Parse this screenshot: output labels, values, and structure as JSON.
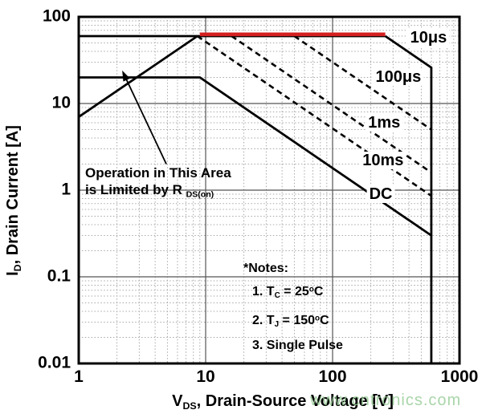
{
  "watermark": {
    "text": "www.cntronics.com",
    "color": "#94cb94"
  },
  "chart_data": {
    "type": "line",
    "scale": "log-log",
    "grid": true,
    "x_axis": {
      "title_pre": "V",
      "title_sub": "DS",
      "title_post": ", Drain-Source Voltage [V]",
      "min": 1,
      "max": 1000,
      "ticks": [
        1,
        10,
        100,
        1000
      ],
      "tick_labels": [
        "1",
        "10",
        "100",
        "1000"
      ]
    },
    "y_axis": {
      "title_pre": "I",
      "title_sub": "D",
      "title_post": ", Drain Current [A]",
      "min": 0.01,
      "max": 100,
      "ticks": [
        100,
        10,
        1,
        0.1,
        0.01
      ],
      "tick_labels": [
        "100",
        "10",
        "1",
        "0.1",
        "0.01"
      ]
    },
    "series": [
      {
        "name": "rdson-limit-diagonal",
        "style": "solid",
        "color": "#000000",
        "points": [
          [
            1,
            7
          ],
          [
            8.6,
            60
          ]
        ]
      },
      {
        "name": "peak-current-60a-line",
        "style": "solid",
        "color": "#000000",
        "points": [
          [
            1,
            60
          ],
          [
            260,
            60
          ]
        ]
      },
      {
        "name": "soa-10us",
        "label": "10μs",
        "style": "solid",
        "color": "#000000",
        "points": [
          [
            260,
            60
          ],
          [
            600,
            26
          ],
          [
            600,
            0.01
          ]
        ]
      },
      {
        "name": "soa-100us",
        "label": "100μs",
        "style": "dashed",
        "color": "#000000",
        "points": [
          [
            50,
            60
          ],
          [
            600,
            5
          ]
        ]
      },
      {
        "name": "soa-1ms",
        "label": "1ms",
        "style": "dashed",
        "color": "#000000",
        "points": [
          [
            16,
            60
          ],
          [
            600,
            1.6
          ]
        ]
      },
      {
        "name": "soa-10ms",
        "label": "10ms",
        "style": "dashed",
        "color": "#000000",
        "points": [
          [
            8.6,
            60
          ],
          [
            600,
            0.86
          ]
        ]
      },
      {
        "name": "soa-dc",
        "label": "DC",
        "style": "solid",
        "color": "#000000",
        "points": [
          [
            1,
            20
          ],
          [
            9,
            20
          ],
          [
            600,
            0.3
          ]
        ]
      },
      {
        "name": "soa-10us-red-highlight",
        "style": "highlight",
        "color": "#d42020",
        "points": [
          [
            9,
            60
          ],
          [
            260,
            60
          ]
        ]
      }
    ],
    "curve_labels": [
      {
        "text": "10μs",
        "v": 570,
        "i": 58
      },
      {
        "text": "100μs",
        "v": 330,
        "i": 20
      },
      {
        "text": "1ms",
        "v": 255,
        "i": 6
      },
      {
        "text": "10ms",
        "v": 250,
        "i": 2.2
      },
      {
        "text": "DC",
        "v": 240,
        "i": 0.9
      }
    ],
    "annotation": {
      "line1": "Operation in This Area",
      "line2_pre": "is Limited by R",
      "line2_sub": "DS(on)",
      "arrow": {
        "from_v": 4.9,
        "from_i": 2.0,
        "to_v": 2.2,
        "to_i": 24
      }
    },
    "notes": {
      "title": "*Notes:",
      "items": [
        {
          "a": "1. T",
          "sub": "C",
          "b": " = 25",
          "sup": "o",
          "c": "C"
        },
        {
          "a": "2. T",
          "sub": "J",
          "b": " = 150",
          "sup": "o",
          "c": "C"
        },
        {
          "a": "3. Single Pulse",
          "sub": "",
          "b": "",
          "sup": "",
          "c": ""
        }
      ]
    },
    "colors": {
      "curve": "#000000",
      "red_highlight": "#d42020",
      "grid_minor": "#a8a8a8",
      "grid_major": "#555555"
    }
  }
}
